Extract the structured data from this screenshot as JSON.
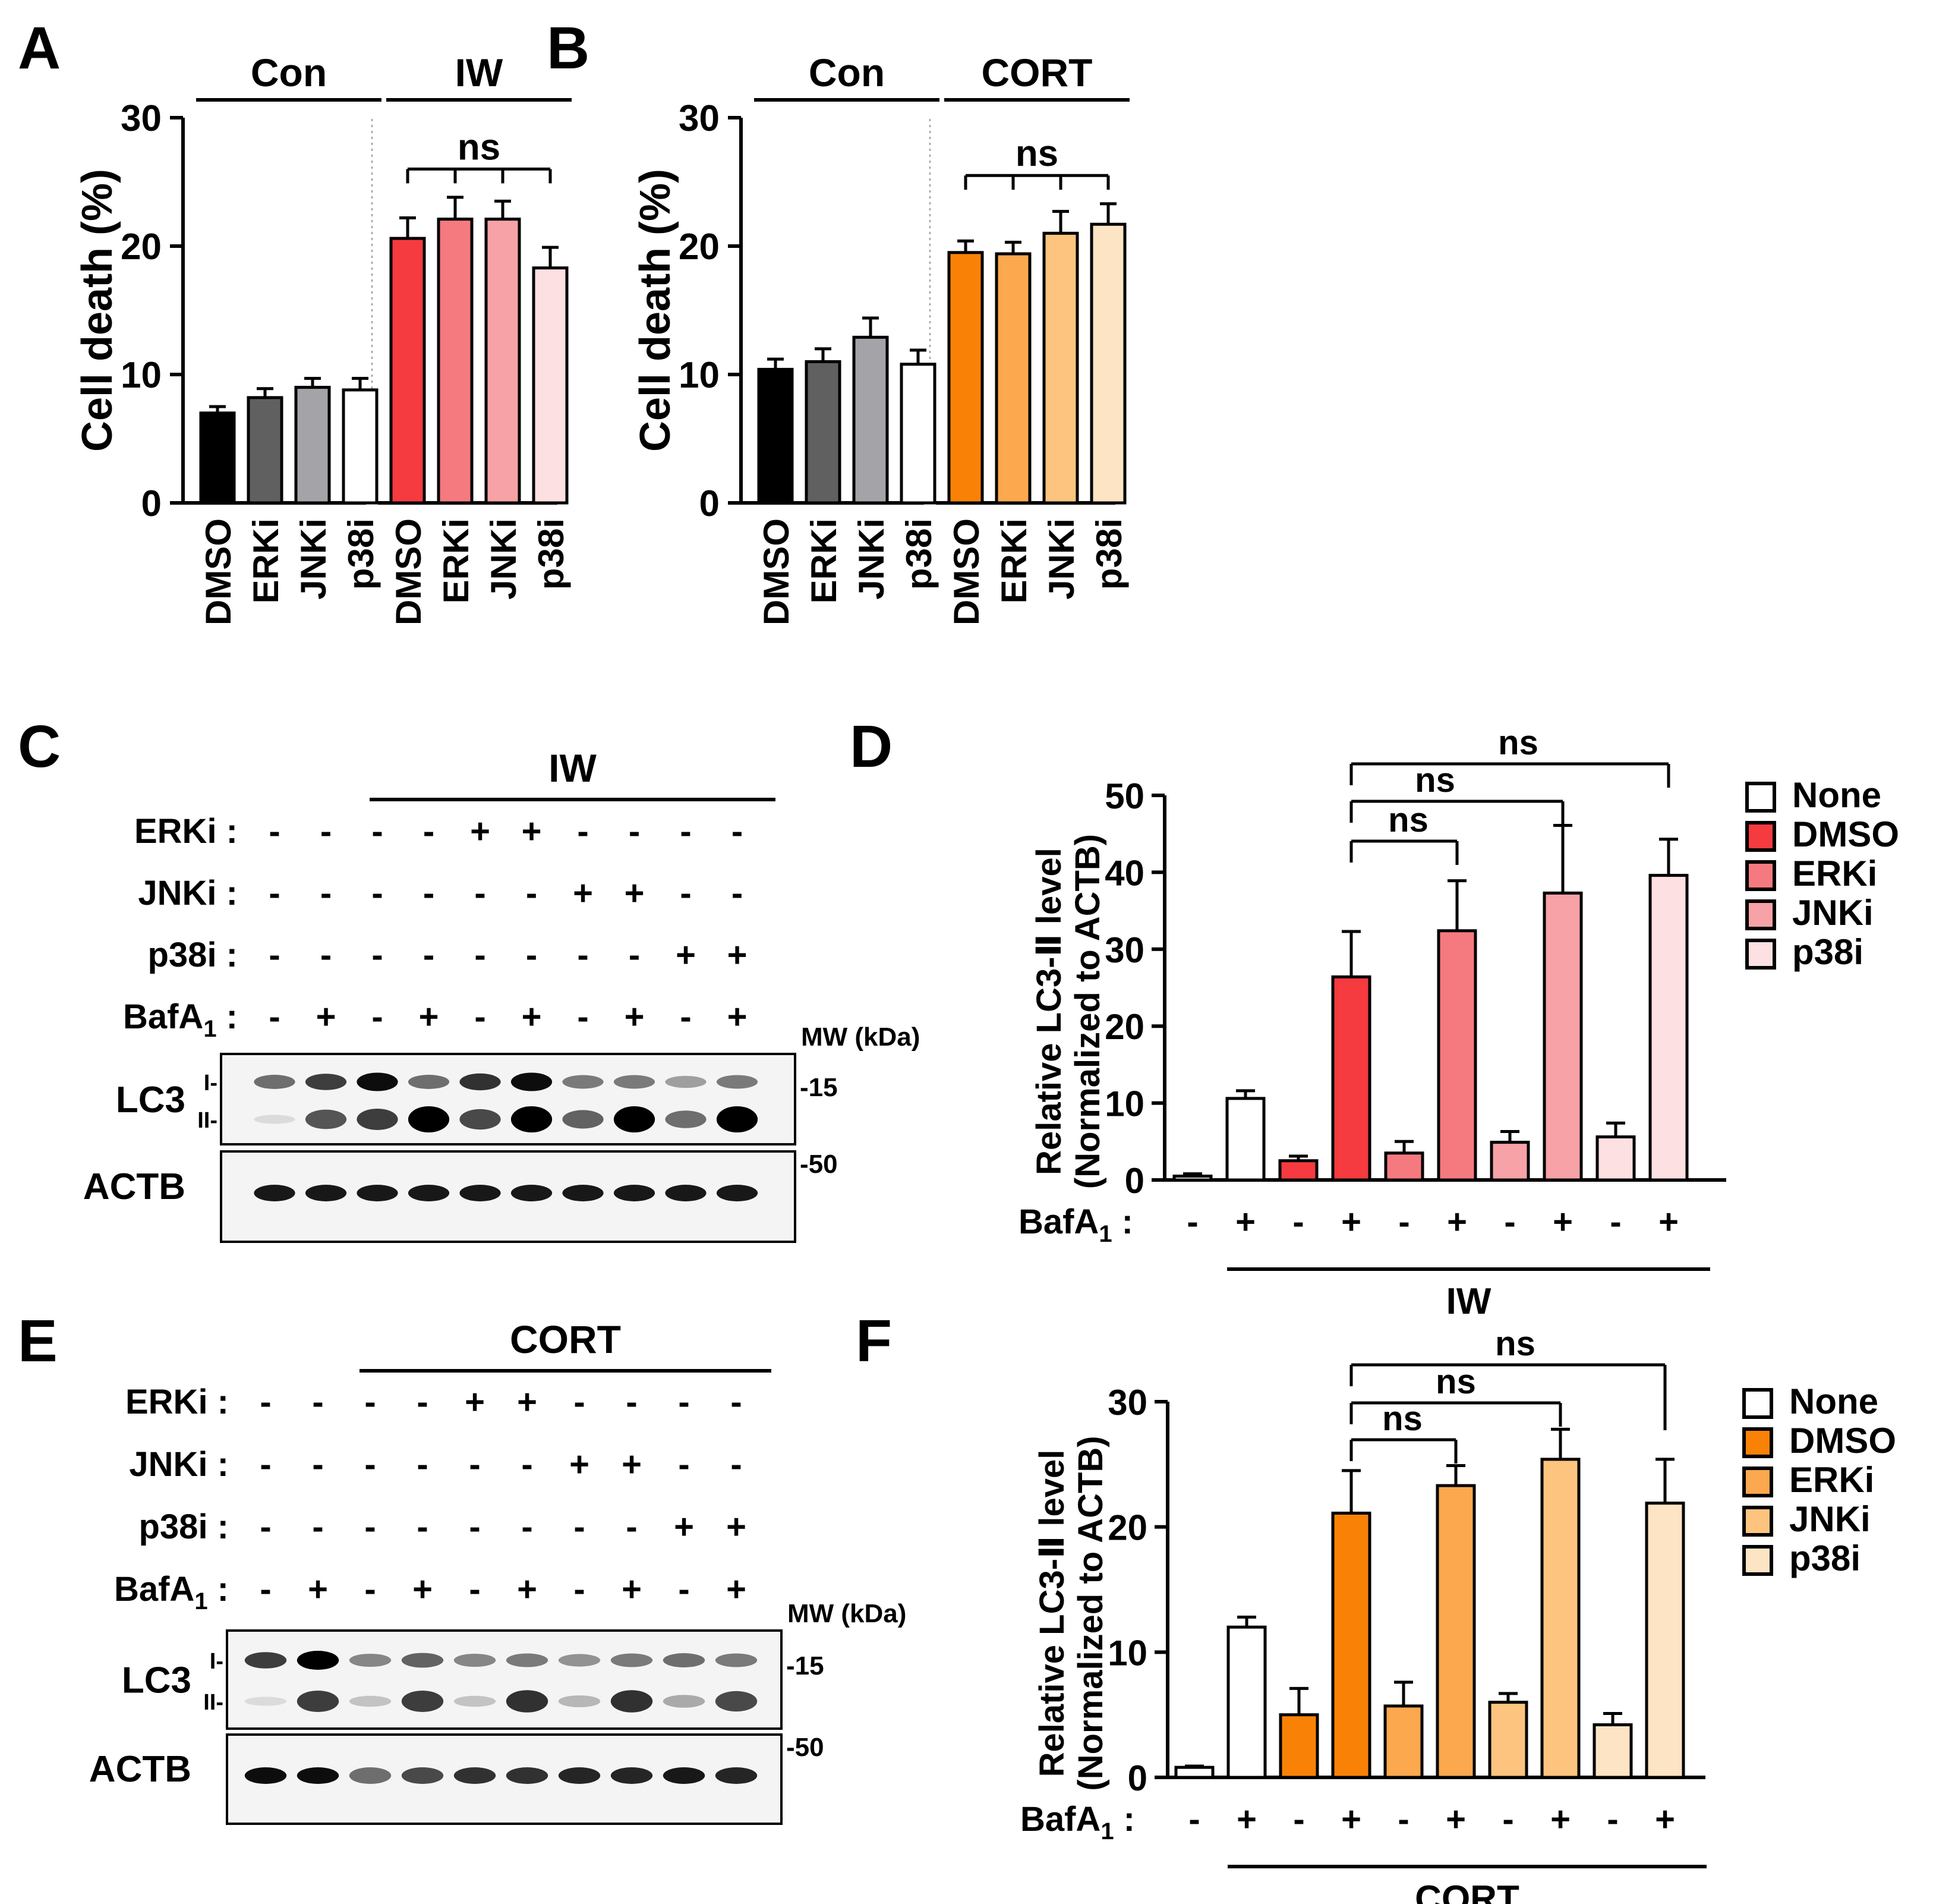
{
  "panel_letters": {
    "a": "A",
    "b": "B",
    "c": "C",
    "d": "D",
    "e": "E",
    "f": "F"
  },
  "colors": {
    "black": "#000000",
    "dark_gray": "#606060",
    "gray": "#a4a4a8",
    "white": "#ffffff",
    "iw_dmso": "#f53b3f",
    "iw_erki": "#f57a80",
    "iw_jnki": "#f7a2a6",
    "iw_p38i": "#fde0e1",
    "cort_dmso": "#f98206",
    "cort_erki": "#fba84e",
    "cort_jnki": "#fcc47e",
    "cort_p38i": "#fde4c4"
  },
  "chart_data": [
    {
      "id": "A",
      "type": "bar",
      "title": "",
      "ylabel": "Cell death (%)",
      "xlabel": "",
      "ylim": [
        0,
        30
      ],
      "yticks": [
        "0",
        "10",
        "20",
        "30"
      ],
      "groups": [
        {
          "label": "Con",
          "categories": [
            "DMSO",
            "ERKi",
            "JNKi",
            "p38i"
          ],
          "values": [
            7,
            8.2,
            9.0,
            8.8
          ],
          "errors": [
            0.5,
            0.7,
            0.7,
            0.9
          ],
          "colors": [
            "#000000",
            "#606060",
            "#a4a4a8",
            "#ffffff"
          ]
        },
        {
          "label": "IW",
          "categories": [
            "DMSO",
            "ERKi",
            "JNKi",
            "p38i"
          ],
          "values": [
            20.6,
            22.1,
            22.1,
            18.3
          ],
          "errors": [
            1.6,
            1.7,
            1.4,
            1.6
          ],
          "colors": [
            "#f53b3f",
            "#f57a80",
            "#f7a2a6",
            "#fde0e1"
          ]
        }
      ],
      "annotation": "ns"
    },
    {
      "id": "B",
      "type": "bar",
      "title": "",
      "ylabel": "Cell death (%)",
      "xlabel": "",
      "ylim": [
        0,
        30
      ],
      "yticks": [
        "0",
        "10",
        "20",
        "30"
      ],
      "groups": [
        {
          "label": "Con",
          "categories": [
            "DMSO",
            "ERKi",
            "JNKi",
            "p38i"
          ],
          "values": [
            10.4,
            11.0,
            12.9,
            10.8
          ],
          "errors": [
            0.8,
            1.0,
            1.5,
            1.1
          ],
          "colors": [
            "#000000",
            "#606060",
            "#a4a4a8",
            "#ffffff"
          ]
        },
        {
          "label": "CORT",
          "categories": [
            "DMSO",
            "ERKi",
            "JNKi",
            "p38i"
          ],
          "values": [
            19.5,
            19.4,
            21.0,
            21.7
          ],
          "errors": [
            0.9,
            0.9,
            1.7,
            1.6
          ],
          "colors": [
            "#f98206",
            "#fba84e",
            "#fcc47e",
            "#fde4c4"
          ]
        }
      ],
      "annotation": "ns"
    },
    {
      "id": "D",
      "type": "bar",
      "ylabel_line1": "Relative LC3-Ⅱ level",
      "ylabel_line2": "(Normalized to ACTB)",
      "ylim": [
        0,
        50
      ],
      "yticks": [
        "0",
        "10",
        "20",
        "30",
        "40",
        "50"
      ],
      "bafa1": [
        "-",
        "+",
        "-",
        "+",
        "-",
        "+",
        "-",
        "+",
        "-",
        "+"
      ],
      "bafa1_label": "BafA",
      "bafa1_sub": "1",
      "values": [
        0.5,
        10.6,
        2.5,
        26.4,
        3.5,
        32.4,
        4.9,
        37.3,
        5.6,
        39.6
      ],
      "errors": [
        0.3,
        1.0,
        0.6,
        5.9,
        1.5,
        6.5,
        1.4,
        8.8,
        1.8,
        4.7
      ],
      "colors": [
        "#ffffff",
        "#ffffff",
        "#f53b3f",
        "#f53b3f",
        "#f57a80",
        "#f57a80",
        "#f7a2a6",
        "#f7a2a6",
        "#fde0e1",
        "#fde0e1"
      ],
      "group_label": "IW",
      "significance": [
        "ns",
        "ns",
        "ns"
      ],
      "legend": [
        {
          "label": "None",
          "color": "#ffffff"
        },
        {
          "label": "DMSO",
          "color": "#f53b3f"
        },
        {
          "label": "ERKi",
          "color": "#f57a80"
        },
        {
          "label": "JNKi",
          "color": "#f7a2a6"
        },
        {
          "label": "p38i",
          "color": "#fde0e1"
        }
      ]
    },
    {
      "id": "F",
      "type": "bar",
      "ylabel_line1": "Relative LC3-Ⅱ level",
      "ylabel_line2": "(Normalized to ACTB)",
      "ylim": [
        0,
        30
      ],
      "yticks": [
        "0",
        "10",
        "20",
        "30"
      ],
      "bafa1": [
        "-",
        "+",
        "-",
        "+",
        "-",
        "+",
        "-",
        "+",
        "-",
        "+"
      ],
      "bafa1_label": "BafA",
      "bafa1_sub": "1",
      "values": [
        0.8,
        12.0,
        5.0,
        21.1,
        5.7,
        23.3,
        6.0,
        25.4,
        4.2,
        21.9
      ],
      "errors": [
        0.1,
        0.8,
        2.1,
        3.4,
        1.9,
        1.6,
        0.7,
        2.4,
        0.9,
        3.5
      ],
      "colors": [
        "#ffffff",
        "#ffffff",
        "#f98206",
        "#f98206",
        "#fba84e",
        "#fba84e",
        "#fcc47e",
        "#fcc47e",
        "#fde4c4",
        "#fde4c4"
      ],
      "group_label": "CORT",
      "significance": [
        "ns",
        "ns",
        "ns"
      ],
      "legend": [
        {
          "label": "None",
          "color": "#ffffff"
        },
        {
          "label": "DMSO",
          "color": "#f98206"
        },
        {
          "label": "ERKi",
          "color": "#fba84e"
        },
        {
          "label": "JNKi",
          "color": "#fcc47e"
        },
        {
          "label": "p38i",
          "color": "#fde4c4"
        }
      ]
    }
  ],
  "blots": [
    {
      "id": "C",
      "group_label": "IW",
      "rows": [
        {
          "label": "ERKi",
          "signs": [
            "-",
            "-",
            "-",
            "-",
            "+",
            "+",
            "-",
            "-",
            "-",
            "-"
          ]
        },
        {
          "label": "JNKi",
          "signs": [
            "-",
            "-",
            "-",
            "-",
            "-",
            "-",
            "+",
            "+",
            "-",
            "-"
          ]
        },
        {
          "label": "p38i",
          "signs": [
            "-",
            "-",
            "-",
            "-",
            "-",
            "-",
            "-",
            "-",
            "+",
            "+"
          ]
        },
        {
          "label": "BafA",
          "sub": "1",
          "signs": [
            "-",
            "+",
            "-",
            "+",
            "-",
            "+",
            "-",
            "+",
            "-",
            "+"
          ]
        }
      ],
      "mw_label": "MW (kDa)",
      "lc3_label": "LC3",
      "lc3_i": "I-",
      "lc3_ii": "II-",
      "actb_label": "ACTB",
      "mw_15": "-15",
      "mw_50": "-50",
      "lc3_i_intensity": [
        0.55,
        0.75,
        0.95,
        0.55,
        0.8,
        0.95,
        0.5,
        0.5,
        0.35,
        0.5
      ],
      "lc3_ii_intensity": [
        0.1,
        0.65,
        0.75,
        1.0,
        0.7,
        1.0,
        0.6,
        1.0,
        0.55,
        1.0
      ],
      "actb_intensity": [
        0.9,
        0.9,
        0.9,
        0.9,
        0.9,
        0.9,
        0.9,
        0.9,
        0.9,
        0.9
      ]
    },
    {
      "id": "E",
      "group_label": "CORT",
      "rows": [
        {
          "label": "ERKi",
          "signs": [
            "-",
            "-",
            "-",
            "-",
            "+",
            "+",
            "-",
            "-",
            "-",
            "-"
          ]
        },
        {
          "label": "JNKi",
          "signs": [
            "-",
            "-",
            "-",
            "-",
            "-",
            "-",
            "+",
            "+",
            "-",
            "-"
          ]
        },
        {
          "label": "p38i",
          "signs": [
            "-",
            "-",
            "-",
            "-",
            "-",
            "-",
            "-",
            "-",
            "+",
            "+"
          ]
        },
        {
          "label": "BafA",
          "sub": "1",
          "signs": [
            "-",
            "+",
            "-",
            "+",
            "-",
            "+",
            "-",
            "+",
            "-",
            "+"
          ]
        }
      ],
      "mw_label": "MW (kDa)",
      "lc3_label": "LC3",
      "lc3_i": "I-",
      "lc3_ii": "II-",
      "actb_label": "ACTB",
      "mw_15": "-15",
      "mw_50": "-50",
      "lc3_i_intensity": [
        0.75,
        1.0,
        0.45,
        0.6,
        0.45,
        0.5,
        0.4,
        0.5,
        0.55,
        0.5
      ],
      "lc3_ii_intensity": [
        0.1,
        0.75,
        0.2,
        0.75,
        0.2,
        0.8,
        0.25,
        0.8,
        0.3,
        0.7
      ],
      "actb_intensity": [
        0.95,
        0.95,
        0.55,
        0.7,
        0.8,
        0.8,
        0.85,
        0.85,
        0.9,
        0.85
      ]
    }
  ]
}
